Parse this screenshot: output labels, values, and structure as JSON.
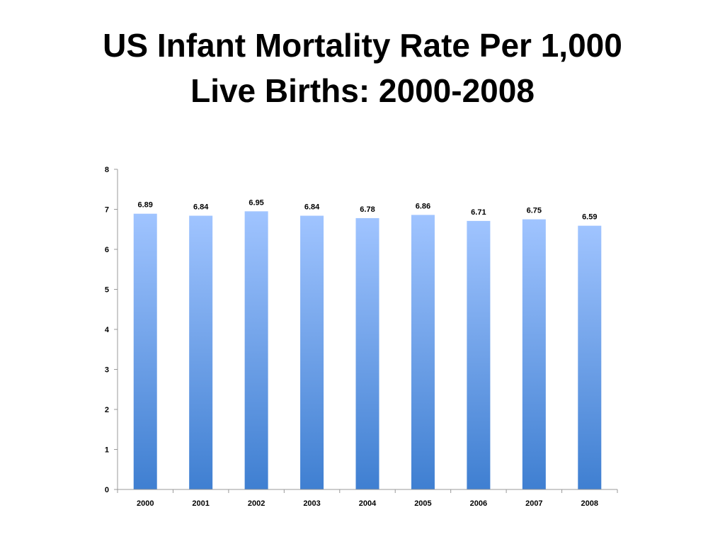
{
  "title_lines": [
    "US Infant Mortality Rate Per 1,000",
    "Live Births: 2000-2008"
  ],
  "chart_data": {
    "type": "bar",
    "title": "US Infant Mortality Rate Per 1,000 Live Births: 2000-2008",
    "categories": [
      "2000",
      "2001",
      "2002",
      "2003",
      "2004",
      "2005",
      "2006",
      "2007",
      "2008"
    ],
    "values": [
      6.89,
      6.84,
      6.95,
      6.84,
      6.78,
      6.86,
      6.71,
      6.75,
      6.59
    ],
    "data_labels": [
      "6.89",
      "6.84",
      "6.95",
      "6.84",
      "6.78",
      "6.86",
      "6.71",
      "6.75",
      "6.59"
    ],
    "y_ticks": [
      0,
      1,
      2,
      3,
      4,
      5,
      6,
      7,
      8
    ],
    "ylim": [
      0,
      8
    ],
    "xlabel": "",
    "ylabel": "",
    "grid": false,
    "legend": "none",
    "colors": {
      "bar_top": "#a0c4ff",
      "bar_bottom": "#3f7fd1",
      "axis": "#999999"
    }
  }
}
